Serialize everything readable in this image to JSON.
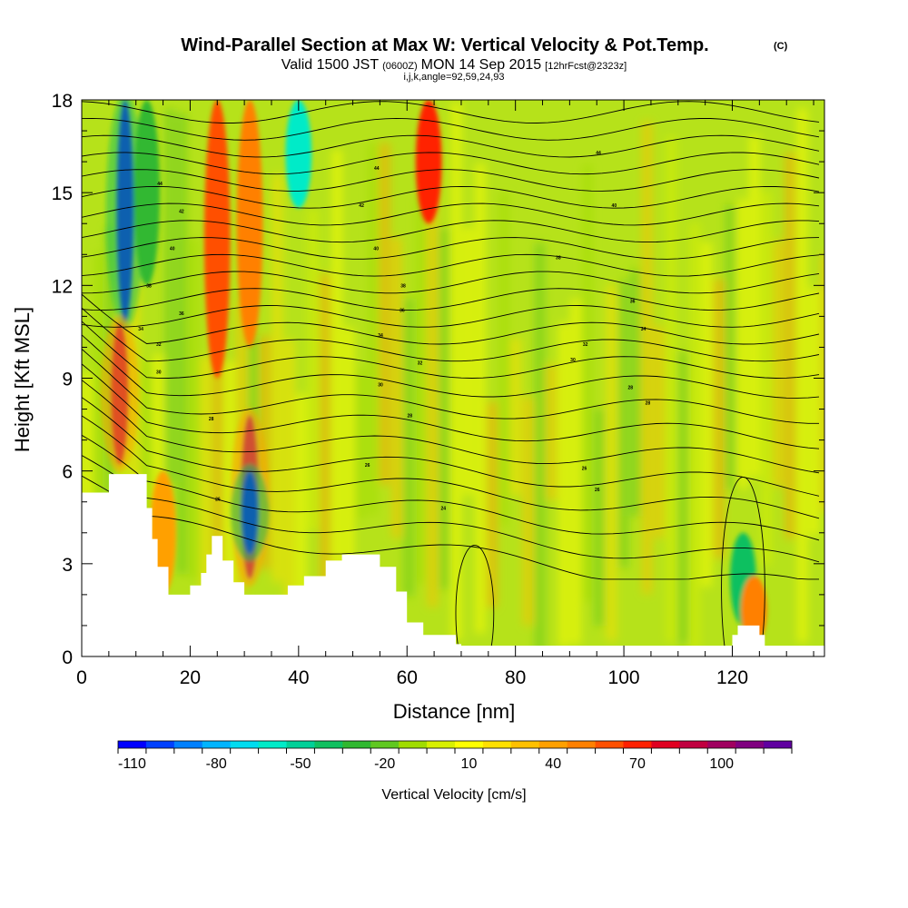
{
  "header": {
    "title": "Wind-Parallel Section at Max W: Vertical Velocity & Pot.Temp.",
    "copyright": "(C)",
    "valid_prefix": "Valid 1500 JST",
    "valid_zulu": "(0600Z)",
    "valid_date": "MON 14 Sep 2015",
    "forecast": "[12hrFcst@2323z]",
    "indices": "i,j,k,angle=92,59,24,93"
  },
  "chart_data": {
    "type": "heatmap",
    "title": "Wind-Parallel Section at Max W: Vertical Velocity & Pot.Temp.",
    "xlabel": "Distance [nm]",
    "ylabel": "Height [Kft MSL]",
    "xlim": [
      0,
      137
    ],
    "ylim": [
      0,
      18
    ],
    "x_ticks": [
      0,
      20,
      40,
      60,
      80,
      100,
      120
    ],
    "y_ticks": [
      0,
      3,
      6,
      9,
      12,
      15,
      18
    ],
    "terrain_kft": {
      "x": [
        0,
        5,
        10,
        12,
        13,
        14,
        16,
        18,
        20,
        22,
        23,
        24,
        25,
        26,
        28,
        30,
        34,
        38,
        41,
        45,
        48,
        50,
        53,
        55,
        58,
        60,
        63,
        66,
        69,
        70,
        73,
        76,
        80,
        84,
        90,
        100,
        110,
        119,
        120,
        121,
        124,
        125,
        126,
        130,
        137
      ],
      "height": [
        5.3,
        5.9,
        5.9,
        4.8,
        3.8,
        2.9,
        2.0,
        2.0,
        2.3,
        2.7,
        3.3,
        3.9,
        3.9,
        3.1,
        2.4,
        2.0,
        2.0,
        2.3,
        2.6,
        3.1,
        3.3,
        3.3,
        3.3,
        2.9,
        2.1,
        1.1,
        0.7,
        0.7,
        0.4,
        0.35,
        0.35,
        0.35,
        0.35,
        0.35,
        0.35,
        0.35,
        0.35,
        0.35,
        0.7,
        1.0,
        1.0,
        0.7,
        0.35,
        0.35,
        0.35
      ]
    },
    "vertical_velocity_features": [
      {
        "x": 8,
        "y0": 10.8,
        "y1": 18,
        "w_cms": -110
      },
      {
        "x": 7,
        "y0": 6.2,
        "y1": 10.8,
        "w_cms": 90
      },
      {
        "x": 31,
        "y0": 2.5,
        "y1": 7.8,
        "w_cms": 100
      },
      {
        "x": 31,
        "y0": 3.3,
        "y1": 6.0,
        "w_cms": -110
      },
      {
        "x": 25,
        "y0": 9.0,
        "y1": 18,
        "w_cms": 55
      },
      {
        "x": 31,
        "y0": 10.0,
        "y1": 18,
        "w_cms": 45
      },
      {
        "x": 40,
        "y0": 14.5,
        "y1": 18,
        "w_cms": -60
      },
      {
        "x": 64,
        "y0": 14.0,
        "y1": 18,
        "w_cms": 65
      },
      {
        "x": 122,
        "y0": 1.0,
        "y1": 4.0,
        "w_cms": -45
      },
      {
        "x": 124,
        "y0": 0.4,
        "y1": 2.6,
        "w_cms": 50
      },
      {
        "x": 15,
        "y0": 2.0,
        "y1": 6.0,
        "w_cms": 40
      },
      {
        "x": 12,
        "y0": 12.0,
        "y1": 18,
        "w_cms": -35
      }
    ],
    "isentrope_labels": [
      {
        "text": "44",
        "x": 14.4,
        "y": 15.3
      },
      {
        "text": "42",
        "x": 18.4,
        "y": 14.4
      },
      {
        "text": "40",
        "x": 16.7,
        "y": 13.2
      },
      {
        "text": "38",
        "x": 12.4,
        "y": 12.0
      },
      {
        "text": "36",
        "x": 18.4,
        "y": 11.1
      },
      {
        "text": "34",
        "x": 10.9,
        "y": 10.6
      },
      {
        "text": "32",
        "x": 14.2,
        "y": 10.1
      },
      {
        "text": "30",
        "x": 14.2,
        "y": 9.2
      },
      {
        "text": "28",
        "x": 23.9,
        "y": 7.7
      },
      {
        "text": "26",
        "x": 25.1,
        "y": 5.1
      },
      {
        "text": "44",
        "x": 54.4,
        "y": 15.8
      },
      {
        "text": "42",
        "x": 51.6,
        "y": 14.6
      },
      {
        "text": "40",
        "x": 54.3,
        "y": 13.2
      },
      {
        "text": "38",
        "x": 59.3,
        "y": 12.0
      },
      {
        "text": "36",
        "x": 59.1,
        "y": 11.2
      },
      {
        "text": "34",
        "x": 55.1,
        "y": 10.4
      },
      {
        "text": "32",
        "x": 62.4,
        "y": 9.5
      },
      {
        "text": "30",
        "x": 55.1,
        "y": 8.8
      },
      {
        "text": "28",
        "x": 60.5,
        "y": 7.8
      },
      {
        "text": "26",
        "x": 52.7,
        "y": 6.2
      },
      {
        "text": "24",
        "x": 66.7,
        "y": 4.8
      },
      {
        "text": "44",
        "x": 95.3,
        "y": 16.3
      },
      {
        "text": "40",
        "x": 98.2,
        "y": 14.6
      },
      {
        "text": "38",
        "x": 87.9,
        "y": 12.9
      },
      {
        "text": "36",
        "x": 101.6,
        "y": 11.5
      },
      {
        "text": "34",
        "x": 103.6,
        "y": 10.6
      },
      {
        "text": "32",
        "x": 92.9,
        "y": 10.1
      },
      {
        "text": "30",
        "x": 90.6,
        "y": 9.6
      },
      {
        "text": "28",
        "x": 101.2,
        "y": 8.7
      },
      {
        "text": "28",
        "x": 104.4,
        "y": 8.2
      },
      {
        "text": "26",
        "x": 92.7,
        "y": 6.1
      },
      {
        "text": "26",
        "x": 95.1,
        "y": 5.4
      }
    ]
  },
  "colorbar": {
    "label": "Vertical Velocity [cm/s]",
    "tick_labels": [
      "-110",
      "-80",
      "-50",
      "-20",
      "10",
      "40",
      "70",
      "100"
    ],
    "tick_values": [
      -110,
      -80,
      -50,
      -20,
      10,
      40,
      70,
      100
    ],
    "min": -115,
    "max": 125,
    "step": 10,
    "colors": [
      "#0000ff",
      "#0040ff",
      "#0080ff",
      "#00b4ff",
      "#00dcf0",
      "#00ebc8",
      "#00d098",
      "#10c060",
      "#30b830",
      "#60c820",
      "#a0dc00",
      "#d8f000",
      "#ffff00",
      "#ffe000",
      "#ffc000",
      "#ffa000",
      "#ff8000",
      "#ff5000",
      "#ff2000",
      "#e00020",
      "#c00040",
      "#a00060",
      "#800080",
      "#6000a0"
    ]
  }
}
